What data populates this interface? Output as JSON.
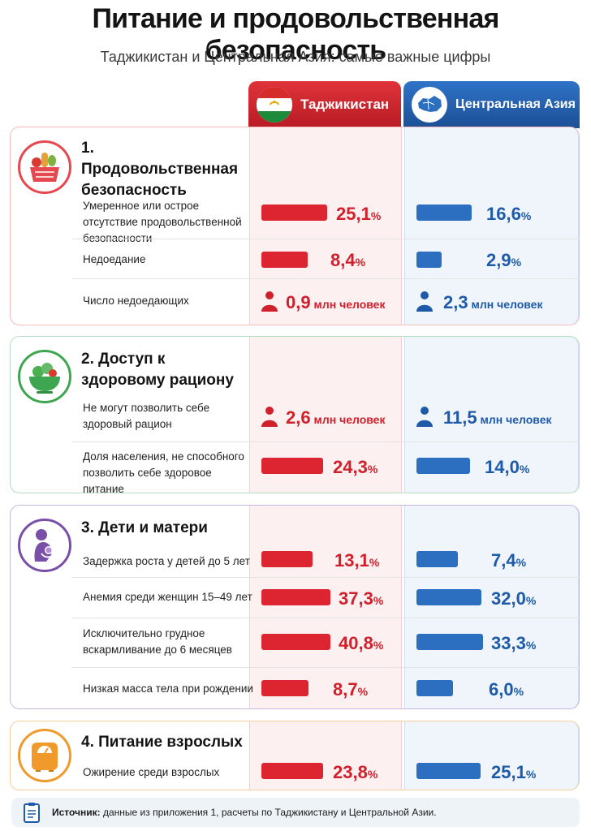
{
  "title": "Питание и продовольственная безопасность",
  "subtitle": "Таджикистан и Центральная Азия: самые важные цифры",
  "columns": {
    "tajikistan": "Таджикистан",
    "central_asia": "Центральная Азия"
  },
  "colors": {
    "tajikistan": "#dc2530",
    "central_asia": "#2c6fc0"
  },
  "sections": [
    {
      "title": "1. Продовольственная безопасность",
      "icon": "food-basket-icon",
      "rows": [
        {
          "label": "Умеренное или острое отсутствие продовольственной безопасности",
          "tj": "25,1",
          "tj_unit": "%",
          "ca": "16,6",
          "ca_unit": "%"
        },
        {
          "label": "Недоедание",
          "tj": "8,4",
          "tj_unit": "%",
          "ca": "2,9",
          "ca_unit": "%"
        },
        {
          "label": "Число недоедающих",
          "tj": "0,9",
          "tj_unit": " млн человек",
          "ca": "2,3",
          "ca_unit": " млн человек"
        }
      ]
    },
    {
      "title": "2. Доступ к здоровому рациону",
      "icon": "salad-bowl-icon",
      "rows": [
        {
          "label": "Не могут позволить себе здоровый рацион",
          "tj": "2,6",
          "tj_unit": " млн человек",
          "ca": "11,5",
          "ca_unit": " млн человек"
        },
        {
          "label": "Доля населения, не способного позволить себе здоровое питание",
          "tj": "24,3",
          "tj_unit": "%",
          "ca": "14,0",
          "ca_unit": "%"
        }
      ]
    },
    {
      "title": "3. Дети и матери",
      "icon": "mother-child-icon",
      "rows": [
        {
          "label": "Задержка роста у детей до 5 лет",
          "tj": "13,1",
          "tj_unit": "%",
          "ca": "7,4",
          "ca_unit": "%"
        },
        {
          "label": "Анемия среди женщин 15–49 лет",
          "tj": "37,3",
          "tj_unit": "%",
          "ca": "32,0",
          "ca_unit": "%"
        },
        {
          "label": "Исключительно грудное вскармливание до 6 месяцев",
          "tj": "40,8",
          "tj_unit": "%",
          "ca": "33,3",
          "ca_unit": "%"
        },
        {
          "label": "Низкая масса тела при рождении",
          "tj": "8,7",
          "tj_unit": "%",
          "ca": "6,0",
          "ca_unit": "%"
        }
      ]
    },
    {
      "title": "4. Питание взрослых",
      "icon": "scale-icon",
      "rows": [
        {
          "label": "Ожирение среди взрослых",
          "tj": "23,8",
          "tj_unit": "%",
          "ca": "25,1",
          "ca_unit": "%"
        }
      ]
    }
  ],
  "source": {
    "label": "Источник:",
    "text": " данные из приложения 1, расчеты по Таджикистану и Центральной Азии."
  },
  "chart_data": {
    "type": "bar",
    "categories": [
      "Умеренное или острое отсутствие продовольственной безопасности",
      "Недоедание",
      "Доля населения, не способного позволить себе здоровое питание",
      "Задержка роста у детей до 5 лет",
      "Анемия среди женщин 15–49 лет",
      "Исключительно грудное вскармливание до 6 месяцев",
      "Низкая масса тела при рождении",
      "Ожирение среди взрослых"
    ],
    "series": [
      {
        "name": "Таджикистан",
        "values": [
          25.1,
          8.4,
          24.3,
          13.1,
          37.3,
          40.8,
          8.7,
          23.8
        ]
      },
      {
        "name": "Центральная Азия",
        "values": [
          16.6,
          2.9,
          14.0,
          7.4,
          32.0,
          33.3,
          6.0,
          25.1
        ]
      }
    ],
    "counts_mln_people": {
      "categories": [
        "Число недоедающих",
        "Не могут позволить себе здоровый рацион"
      ],
      "series": [
        {
          "name": "Таджикистан",
          "values": [
            0.9,
            2.6
          ]
        },
        {
          "name": "Центральная Азия",
          "values": [
            2.3,
            11.5
          ]
        }
      ]
    },
    "title": "Питание и продовольственная безопасность",
    "grid": false,
    "legend": "top"
  }
}
